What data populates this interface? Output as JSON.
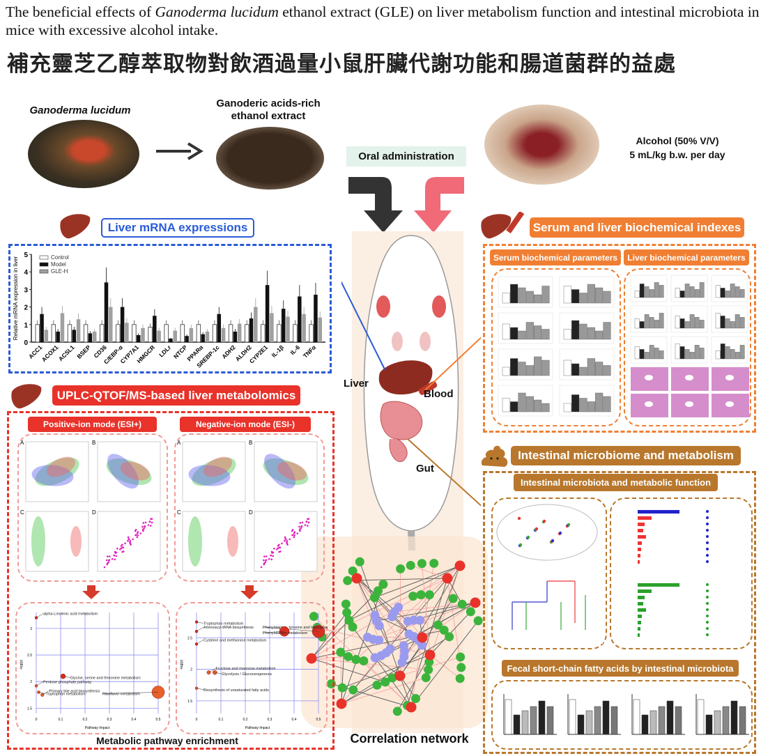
{
  "title": {
    "en_part1": "The beneficial effects of ",
    "en_italic": "Ganoderma lucidum",
    "en_part2": " ethanol extract (GLE) on liver metabolism function and intestinal microbiota in mice with excessive alcohol intake.",
    "zh": "補充靈芝乙醇萃取物對飲酒過量小鼠肝臟代謝功能和腸道菌群的益處"
  },
  "top": {
    "mushroom_label": "Ganoderma lucidum",
    "extract_label": "Ganoderic acids-rich ethanol extract",
    "oral_label": "Oral administration",
    "alcohol_line1": "Alcohol (50% V/V)",
    "alcohol_line2": "5 mL/kg b.w. per day"
  },
  "mouse": {
    "liver": "Liver",
    "blood": "Blood",
    "gut": "Gut",
    "network_title": "Correlation network"
  },
  "liver_mrna": {
    "header": "Liver mRNA expressions"
  },
  "metabolomics": {
    "header": "UPLC-QTOF/MS-based liver metabolomics",
    "positive": "Positive-ion mode (ESI+)",
    "negative": "Negative-ion mode (ESI-)",
    "panel_letters": [
      "A",
      "B",
      "C",
      "D"
    ],
    "footer": "Metabolic pathway enrichment"
  },
  "serum": {
    "header": "Serum and liver biochemical indexes",
    "serum_sub": "Serum biochemical parameters",
    "liver_sub": "Liver biochemical parameters"
  },
  "intestinal": {
    "header": "Intestinal microbiome and metabolism",
    "sub1": "Intestinal microbiota and metabolic function",
    "sub2": "Fecal short-chain fatty acids by intestinal microbiota"
  },
  "colors": {
    "blue": "#2a5bd7",
    "red": "#e8322a",
    "orange": "#f07f33",
    "brown": "#b8772c",
    "node_green": "#3cb43c",
    "node_red": "#e8322a",
    "node_blue": "#9a9aef",
    "oral_bg": "#e3f2ea",
    "mouse_bg": "#fbeee2"
  },
  "chart_data": [
    {
      "type": "bar",
      "ylabel": "Relative mRNA expression in liver",
      "ylim": [
        0,
        5
      ],
      "yticks": [
        0,
        1,
        2,
        3,
        4,
        5
      ],
      "legend": "top-left",
      "categories": [
        "ACC1",
        "ACOX1",
        "ACSL1",
        "BSEP",
        "CD36",
        "C/EBP-α",
        "CYP7A1",
        "HMGCR",
        "LDLr",
        "NTCP",
        "PPARα",
        "SREBP-1c",
        "ADH2",
        "ALDH2",
        "CYP2E1",
        "IL-1β",
        "IL-6",
        "TNFα"
      ],
      "series": [
        {
          "name": "Control",
          "color": "#ffffff",
          "values": [
            1,
            1,
            1,
            1,
            1,
            1,
            1,
            0.85,
            1,
            1,
            1,
            1,
            1,
            1,
            1,
            1,
            1,
            1
          ]
        },
        {
          "name": "Model",
          "color": "#111111",
          "values": [
            1.6,
            0.6,
            0.7,
            0.5,
            3.4,
            2.0,
            0.4,
            1.5,
            0.2,
            0.35,
            0.45,
            1.6,
            0.6,
            1.35,
            3.25,
            1.9,
            2.6,
            2.7
          ]
        },
        {
          "name": "GLE-H",
          "color": "#a0a0a0",
          "values": [
            0.7,
            1.65,
            1.3,
            0.6,
            2.0,
            1.1,
            0.8,
            0.65,
            0.65,
            0.8,
            0.6,
            0.8,
            1.05,
            2.0,
            1.65,
            1.45,
            1.6,
            1.4
          ]
        }
      ]
    },
    {
      "type": "scatter",
      "xlabel": "Pathway Impact",
      "ylabel": "-log(p)",
      "xlim": [
        0,
        0.5
      ],
      "ylim": [
        1.4,
        3.3
      ],
      "xticks": [
        0,
        0.1,
        0.2,
        0.3,
        0.4,
        0.5
      ],
      "yticks": [
        1.5,
        2.0,
        2.5,
        3.0
      ],
      "points": [
        {
          "label": "alpha-Linolenic acid metabolism",
          "x": 0.0,
          "y": 3.2
        },
        {
          "label": "Glycine, serine and threonine metabolism",
          "x": 0.11,
          "y": 2.1
        },
        {
          "label": "Pentose phosphate pathway",
          "x": 0.0,
          "y": 1.92
        },
        {
          "label": "Tryptophan metabolism",
          "x": 0.01,
          "y": 1.8
        },
        {
          "label": "Primary bile acid biosynthesis",
          "x": 0.025,
          "y": 1.75
        },
        {
          "label": "Riboflavin metabolism",
          "x": 0.5,
          "y": 1.8
        }
      ]
    },
    {
      "type": "scatter",
      "xlabel": "Pathway Impact",
      "ylabel": "-log(p)",
      "xlim": [
        0,
        0.5
      ],
      "ylim": [
        1.3,
        2.9
      ],
      "xticks": [
        0,
        0.1,
        0.2,
        0.3,
        0.4,
        0.5
      ],
      "yticks": [
        1.5,
        2.0,
        2.5
      ],
      "points": [
        {
          "label": "Phenylalanine, tyrosine and tryptophan biosynthesis",
          "x": 0.5,
          "y": 2.6
        },
        {
          "label": "Tryptophan metabolism",
          "x": 0.0,
          "y": 2.75
        },
        {
          "label": "Aminoacyl-tRNA biosynthesis",
          "x": 0.0,
          "y": 2.6
        },
        {
          "label": "Phenylalanine metabolism",
          "x": 0.36,
          "y": 2.6
        },
        {
          "label": "Cysteine and methionine metabolism",
          "x": 0.0,
          "y": 2.4
        },
        {
          "label": "Glycolysis / Gluconeogenesis",
          "x": 0.075,
          "y": 1.95
        },
        {
          "label": "Fructose and mannose metabolism",
          "x": 0.05,
          "y": 1.95
        },
        {
          "label": "Biosynthesis of unsaturated fatty acids",
          "x": 0.0,
          "y": 1.7
        }
      ]
    }
  ]
}
